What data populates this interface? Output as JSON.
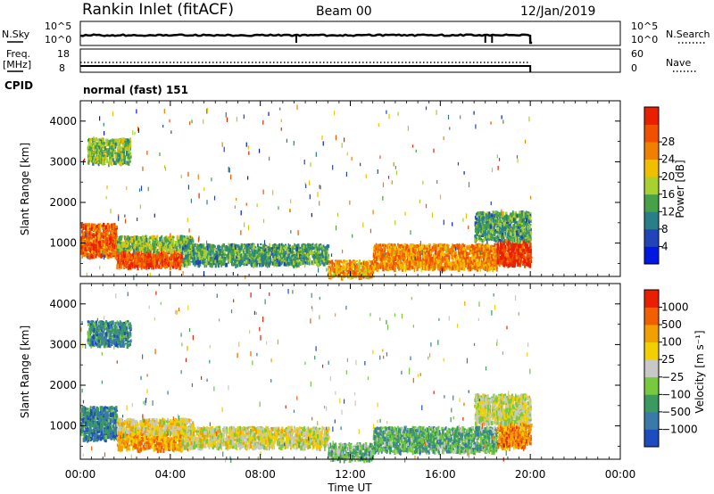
{
  "header": {
    "station": "Rankin Inlet (fitACF)",
    "beam": "Beam 00",
    "date": "12/Jan/2019"
  },
  "noise_panel": {
    "left_label": "N.Sky",
    "right_label": "N.Search",
    "left_ticks": [
      "10^5",
      "10^0"
    ],
    "right_ticks": [
      "10^5",
      "10^0"
    ]
  },
  "freq_panel": {
    "left_label_1": "Freq.",
    "left_label_2": "[MHz]",
    "right_label": "Nave",
    "left_ticks": [
      "18",
      "8"
    ],
    "right_ticks": [
      "60",
      "0"
    ]
  },
  "cpid": {
    "label": "CPID",
    "value": "normal (fast) 151"
  },
  "chart_data": [
    {
      "type": "heatmap",
      "name": "power",
      "ylabel": "Slant Range [km]",
      "yticks": [
        1000,
        2000,
        3000,
        4000
      ],
      "ylim": [
        180,
        4500
      ],
      "xlim": [
        0,
        24
      ],
      "colorbar": {
        "label": "Power [dB]",
        "ticks": [
          "4",
          "8",
          "12",
          "16",
          "20",
          "24",
          "28"
        ],
        "colors": [
          "#0018e0",
          "#2244b8",
          "#2a7e88",
          "#48a048",
          "#a8d030",
          "#f0c000",
          "#f08000",
          "#f05000",
          "#e82000"
        ]
      },
      "regions": [
        {
          "t": [
            0.0,
            1.6
          ],
          "r": [
            700,
            1500
          ],
          "level": 0.85
        },
        {
          "t": [
            0.3,
            2.2
          ],
          "r": [
            3000,
            3600
          ],
          "level": 0.45
        },
        {
          "t": [
            1.6,
            4.5
          ],
          "r": [
            450,
            850
          ],
          "level": 0.9
        },
        {
          "t": [
            1.6,
            5.0
          ],
          "r": [
            850,
            1200
          ],
          "level": 0.45
        },
        {
          "t": [
            4.5,
            11.0
          ],
          "r": [
            500,
            1000
          ],
          "level": 0.35
        },
        {
          "t": [
            11.0,
            13.0
          ],
          "r": [
            200,
            600
          ],
          "level": 0.7
        },
        {
          "t": [
            13.0,
            18.5
          ],
          "r": [
            400,
            1000
          ],
          "level": 0.75
        },
        {
          "t": [
            18.5,
            20.0
          ],
          "r": [
            500,
            1100
          ],
          "level": 0.95
        },
        {
          "t": [
            17.5,
            20.0
          ],
          "r": [
            1100,
            1800
          ],
          "level": 0.35
        }
      ]
    },
    {
      "type": "heatmap",
      "name": "velocity",
      "ylabel": "Slant Range [km]",
      "yticks": [
        1000,
        2000,
        3000,
        4000
      ],
      "ylim": [
        180,
        4500
      ],
      "xlim": [
        0,
        24
      ],
      "colorbar": {
        "label": "Velocity [m s⁻¹]",
        "ticks": [
          "1000",
          "500",
          "100",
          "25",
          "−25",
          "−100",
          "−500",
          "−1000"
        ],
        "colors": [
          "#1c4cc0",
          "#3a7aa8",
          "#3a9a60",
          "#78c840",
          "#c8c8c8",
          "#f0d000",
          "#f0a000",
          "#f06000",
          "#e82000"
        ]
      },
      "regions": [
        {
          "t": [
            0.0,
            1.6
          ],
          "r": [
            700,
            1500
          ],
          "level": 0.15
        },
        {
          "t": [
            0.3,
            2.2
          ],
          "r": [
            3000,
            3600
          ],
          "level": 0.2
        },
        {
          "t": [
            1.6,
            4.5
          ],
          "r": [
            450,
            850
          ],
          "level": 0.75
        },
        {
          "t": [
            1.6,
            5.0
          ],
          "r": [
            850,
            1200
          ],
          "level": 0.6
        },
        {
          "t": [
            4.5,
            11.0
          ],
          "r": [
            500,
            1000
          ],
          "level": 0.55
        },
        {
          "t": [
            11.0,
            13.0
          ],
          "r": [
            200,
            600
          ],
          "level": 0.35
        },
        {
          "t": [
            13.0,
            18.5
          ],
          "r": [
            400,
            1000
          ],
          "level": 0.3
        },
        {
          "t": [
            18.5,
            20.0
          ],
          "r": [
            500,
            1100
          ],
          "level": 0.8
        },
        {
          "t": [
            17.5,
            20.0
          ],
          "r": [
            1100,
            1800
          ],
          "level": 0.5
        }
      ]
    }
  ],
  "x_axis": {
    "label": "Time UT",
    "ticks": [
      "00:00",
      "04:00",
      "08:00",
      "12:00",
      "16:00",
      "20:00",
      "00:00"
    ],
    "tick_hours": [
      0,
      4,
      8,
      12,
      16,
      20,
      24
    ],
    "xlim": [
      0,
      24
    ]
  },
  "noise_series": {
    "end_hour": 20.0,
    "drop_hours": [
      9.6,
      18.0,
      18.3
    ]
  },
  "freq_series": {
    "end_hour": 20.0
  }
}
